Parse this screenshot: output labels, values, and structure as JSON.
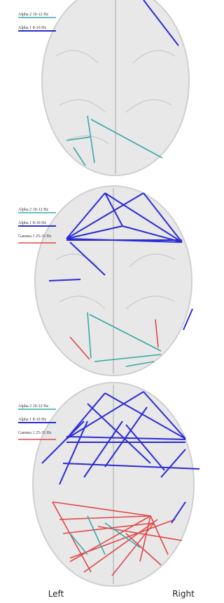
{
  "panels": [
    {
      "legend": [
        {
          "label": "Alpha 2 10-12 Hz"
        },
        {
          "label": "Alpha 1 8-10 Hz"
        }
      ]
    },
    {
      "legend": [
        {
          "label": "Alpha 2 10-12 Hz"
        },
        {
          "label": "Alpha 1 8-10 Hz"
        },
        {
          "label": "Gamma 1 25-35 Hz"
        }
      ]
    },
    {
      "legend": [
        {
          "label": "Alpha 2 10-12 Hz"
        },
        {
          "label": "Alpha 1 8-10 Hz"
        },
        {
          "label": "Gamma 1 25-35 Hz"
        }
      ]
    }
  ],
  "orientation": {
    "left": "Left",
    "right": "Right"
  }
}
